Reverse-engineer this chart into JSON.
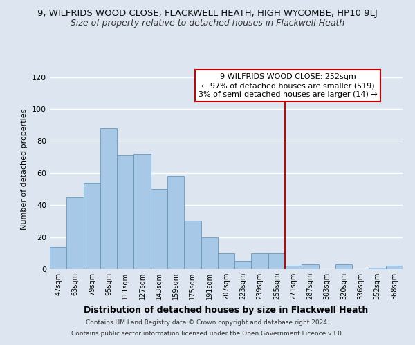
{
  "title_main": "9, WILFRIDS WOOD CLOSE, FLACKWELL HEATH, HIGH WYCOMBE, HP10 9LJ",
  "title_sub": "Size of property relative to detached houses in Flackwell Heath",
  "xlabel": "Distribution of detached houses by size in Flackwell Heath",
  "ylabel": "Number of detached properties",
  "bin_labels": [
    "47sqm",
    "63sqm",
    "79sqm",
    "95sqm",
    "111sqm",
    "127sqm",
    "143sqm",
    "159sqm",
    "175sqm",
    "191sqm",
    "207sqm",
    "223sqm",
    "239sqm",
    "255sqm",
    "271sqm",
    "287sqm",
    "303sqm",
    "320sqm",
    "336sqm",
    "352sqm",
    "368sqm"
  ],
  "bar_heights": [
    14,
    45,
    54,
    88,
    71,
    72,
    50,
    58,
    30,
    20,
    10,
    5,
    10,
    10,
    2,
    3,
    0,
    3,
    0,
    1,
    2
  ],
  "bar_color": "#a8c8e8",
  "bar_edge_color": "#6699bb",
  "ylim": [
    0,
    125
  ],
  "yticks": [
    0,
    20,
    40,
    60,
    80,
    100,
    120
  ],
  "vline_x": 13.5,
  "vline_color": "#cc0000",
  "annotation_box_text": "9 WILFRIDS WOOD CLOSE: 252sqm\n← 97% of detached houses are smaller (519)\n3% of semi-detached houses are larger (14) →",
  "footer_line1": "Contains HM Land Registry data © Crown copyright and database right 2024.",
  "footer_line2": "Contains public sector information licensed under the Open Government Licence v3.0.",
  "bg_color": "#dde6f0",
  "plot_bg_color": "#dde6f0",
  "grid_color": "#ffffff",
  "title_main_fontsize": 9.5,
  "title_sub_fontsize": 9,
  "ylabel_fontsize": 8,
  "xlabel_fontsize": 9,
  "footer_fontsize": 6.5,
  "annot_fontsize": 8
}
